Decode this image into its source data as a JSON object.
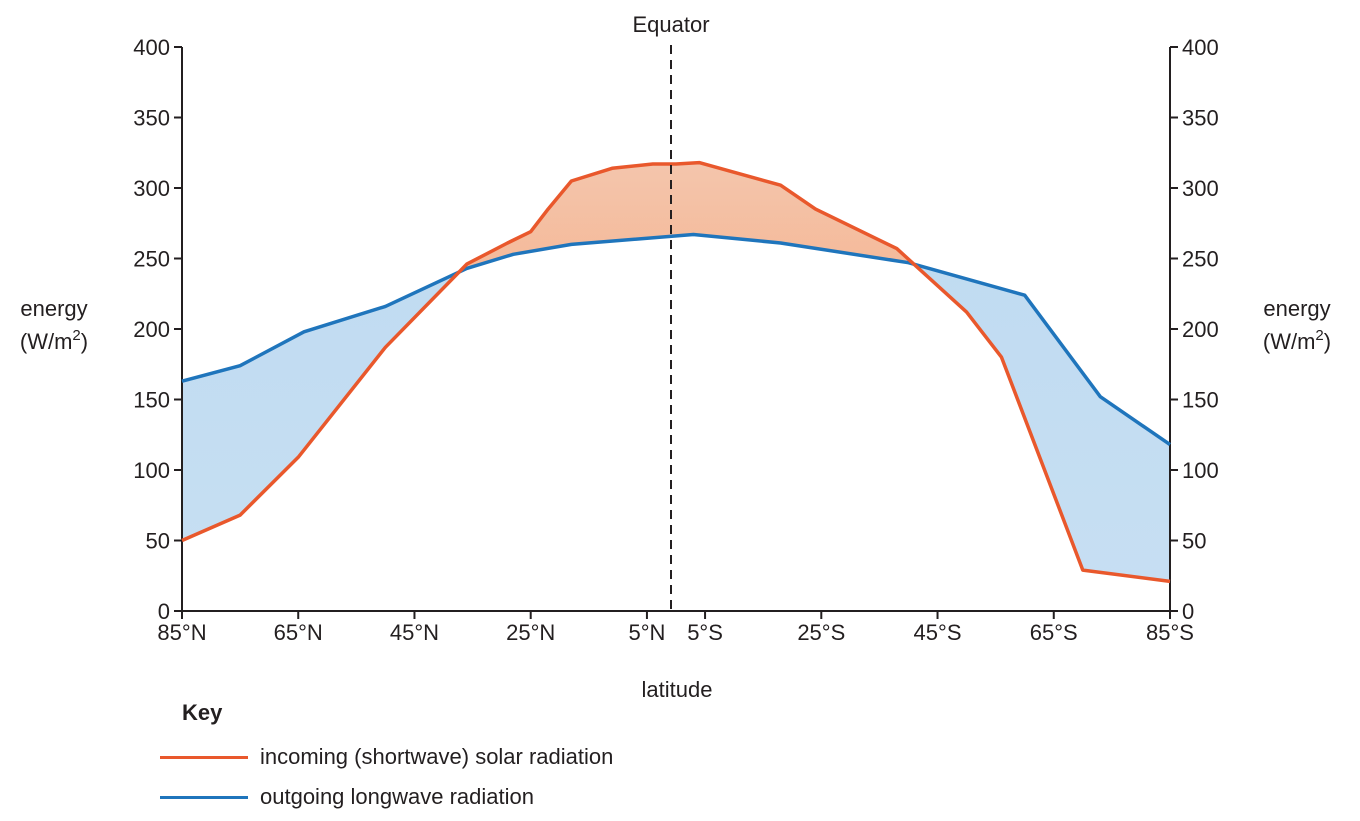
{
  "chart_data": {
    "type": "line",
    "xlabel": "latitude",
    "ylabel": "energy",
    "ylabel_unit_prefix": "(W/m",
    "ylabel_unit_exp": "2",
    "ylabel_unit_suffix": ")",
    "ylim": [
      0,
      400
    ],
    "yticks": [
      0,
      50,
      100,
      150,
      200,
      250,
      300,
      350,
      400
    ],
    "ytick_labels": [
      "0",
      "50",
      "100",
      "150",
      "200",
      "250",
      "300",
      "350",
      "400"
    ],
    "xlim": [
      -85,
      85
    ],
    "xticks": [
      -85,
      -65,
      -45,
      -25,
      -5,
      5,
      25,
      45,
      65,
      85
    ],
    "xtick_labels": [
      "85°N",
      "65°N",
      "45°N",
      "25°N",
      "5°N",
      "5°S",
      "25°S",
      "45°S",
      "65°S",
      "85°S"
    ],
    "x_direction": "latitude from 85°N (left) to 85°S (right)",
    "annotation": {
      "label": "Equator",
      "x": 0
    },
    "legend_title": "Key",
    "legend_placement": "bottom-left",
    "grid": false,
    "series": [
      {
        "name": "incoming (shortwave) solar radiation",
        "color": "#e9582c",
        "x": [
          -85,
          -75,
          -65,
          -50,
          -36,
          -29,
          -25,
          -22,
          -18,
          -11,
          -4,
          0,
          4,
          18,
          24,
          38,
          50,
          56,
          70,
          85
        ],
        "y": [
          50,
          68,
          109,
          187,
          246,
          261,
          269,
          285,
          305,
          314,
          317,
          317,
          318,
          302,
          285,
          257,
          212,
          180,
          29,
          21
        ]
      },
      {
        "name": "outgoing longwave radiation",
        "color": "#1f75bc",
        "x": [
          -85,
          -75,
          -64,
          -50,
          -36,
          -28,
          -18,
          3,
          18,
          40,
          60,
          73,
          85
        ],
        "y": [
          163,
          174,
          198,
          216,
          243,
          253,
          260,
          267,
          261,
          247,
          224,
          152,
          118
        ]
      }
    ],
    "fill_between": {
      "top_color": "#f7935c",
      "bottom_color": "#bcd9f0"
    }
  }
}
